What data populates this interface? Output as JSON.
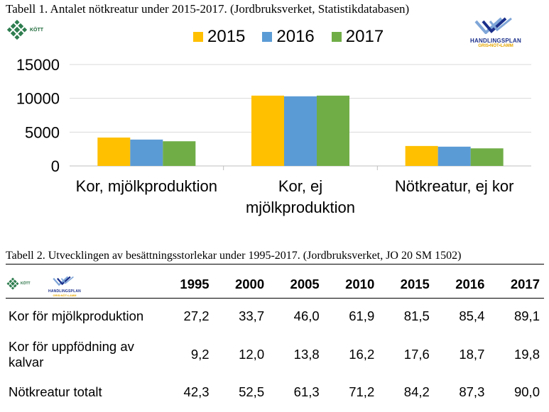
{
  "table1_caption": "Tabell 1. Antalet nötkreatur under 2015-2017. (Jordbruksverket, Statistikdatabasen)",
  "table2_caption": "Tabell 2. Utvecklingen av besättningsstorlekar under 1995-2017. (Jordbruksverket, JO 20 SM 1502)",
  "logo_lrf": {
    "text": "KÖTT"
  },
  "logo_hp": {
    "line1": "HANDLINGSPLAN",
    "line2": "GRIS•NÖT•LAMM"
  },
  "chart_data": {
    "type": "bar",
    "title": "",
    "xlabel": "",
    "ylabel": "",
    "categories": [
      "Kor, mjölkproduktion",
      "Kor, ej mjölkproduktion",
      "Nötkreatur, ej kor"
    ],
    "category_lines": [
      [
        "Kor, mjölkproduktion"
      ],
      [
        "Kor, ej",
        "mjölkproduktion"
      ],
      [
        "Nötkreatur, ej kor"
      ]
    ],
    "series": [
      {
        "name": "2015",
        "color": "#FFC000",
        "values": [
          4200,
          10400,
          2950
        ]
      },
      {
        "name": "2016",
        "color": "#5B9BD5",
        "values": [
          3900,
          10300,
          2850
        ]
      },
      {
        "name": "2017",
        "color": "#70AD47",
        "values": [
          3650,
          10400,
          2600
        ]
      }
    ],
    "yticks": [
      "0",
      "5000",
      "10000",
      "15000"
    ],
    "ylim": [
      0,
      15000
    ],
    "grid": true,
    "legend_position": "top"
  },
  "table2": {
    "years": [
      "1995",
      "2000",
      "2005",
      "2010",
      "2015",
      "2016",
      "2017"
    ],
    "rows": [
      {
        "label": "Kor för mjölkproduktion",
        "values": [
          "27,2",
          "33,7",
          "46,0",
          "61,9",
          "81,5",
          "85,4",
          "89,1"
        ]
      },
      {
        "label": "Kor för uppfödning av kalvar",
        "values": [
          "9,2",
          "12,0",
          "13,8",
          "16,2",
          "17,6",
          "18,7",
          "19,8"
        ]
      },
      {
        "label": "Nötkreatur totalt",
        "values": [
          "42,3",
          "52,5",
          "61,3",
          "71,2",
          "84,2",
          "87,3",
          "90,0"
        ]
      }
    ]
  }
}
